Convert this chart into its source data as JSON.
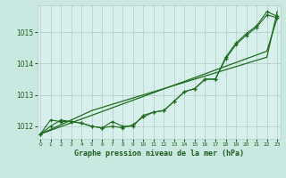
{
  "title": "Graphe pression niveau de la mer (hPa)",
  "x": [
    0,
    1,
    2,
    3,
    4,
    5,
    6,
    7,
    8,
    9,
    10,
    11,
    12,
    13,
    14,
    15,
    16,
    17,
    18,
    19,
    20,
    21,
    22,
    23
  ],
  "line1": [
    1011.75,
    1012.0,
    1012.2,
    1012.15,
    1012.1,
    1012.0,
    1011.95,
    1012.0,
    1011.95,
    1012.05,
    1012.3,
    1012.45,
    1012.5,
    1012.8,
    1013.1,
    1013.2,
    1013.5,
    1013.5,
    1014.15,
    1014.6,
    1014.9,
    1015.15,
    1015.55,
    1015.45
  ],
  "line2": [
    1011.75,
    1012.2,
    1012.15,
    1012.15,
    1012.1,
    1012.0,
    1011.95,
    1012.15,
    1012.0,
    1012.0,
    1012.35,
    1012.45,
    1012.5,
    1012.8,
    1013.1,
    1013.2,
    1013.5,
    1013.5,
    1014.2,
    1014.65,
    1014.95,
    1015.2,
    1015.65,
    1015.5
  ],
  "line_straight_low": [
    1011.75,
    1011.87,
    1011.99,
    1012.11,
    1012.23,
    1012.35,
    1012.47,
    1012.59,
    1012.71,
    1012.83,
    1012.95,
    1013.07,
    1013.19,
    1013.31,
    1013.43,
    1013.55,
    1013.67,
    1013.79,
    1013.91,
    1014.03,
    1014.15,
    1014.27,
    1014.39,
    1015.45
  ],
  "line_straight_high": [
    1011.75,
    1011.9,
    1012.05,
    1012.2,
    1012.35,
    1012.5,
    1012.6,
    1012.7,
    1012.8,
    1012.9,
    1013.0,
    1013.1,
    1013.2,
    1013.3,
    1013.4,
    1013.5,
    1013.6,
    1013.7,
    1013.8,
    1013.9,
    1014.0,
    1014.1,
    1014.2,
    1015.65
  ],
  "bg_color": "#c8e8e0",
  "plot_bg_color": "#d8f0ec",
  "line_color": "#1e6b1e",
  "grid_color": "#b0ccc8",
  "text_color": "#1e5c1e",
  "ylim_min": 1011.6,
  "ylim_max": 1015.85,
  "yticks": [
    1012,
    1013,
    1014,
    1015
  ],
  "xticks": [
    0,
    1,
    2,
    3,
    4,
    5,
    6,
    7,
    8,
    9,
    10,
    11,
    12,
    13,
    14,
    15,
    16,
    17,
    18,
    19,
    20,
    21,
    22,
    23
  ]
}
